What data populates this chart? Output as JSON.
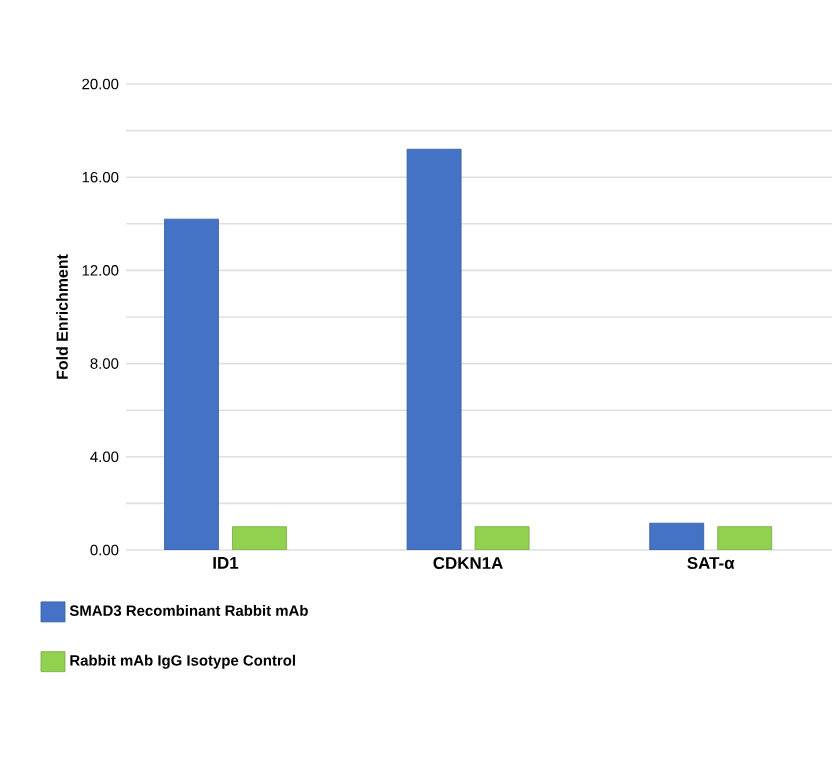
{
  "chart_data": {
    "type": "bar",
    "ylabel": "Fold Enrichment",
    "categories": [
      "ID1",
      "CDKN1A",
      "SAT-α"
    ],
    "series": [
      {
        "name": "SMAD3 Recombinant Rabbit mAb",
        "color": "#4472c4",
        "values": [
          14.2,
          17.2,
          1.15
        ]
      },
      {
        "name": "Rabbit mAb IgG Isotype Control",
        "color": "#92d050",
        "values": [
          1.0,
          1.0,
          1.0
        ]
      }
    ],
    "ylim": [
      0,
      20
    ],
    "yticks": [
      {
        "value": 0,
        "label": "0.00"
      },
      {
        "value": 2,
        "label": null
      },
      {
        "value": 4,
        "label": "4.00"
      },
      {
        "value": 6,
        "label": null
      },
      {
        "value": 8,
        "label": "8.00"
      },
      {
        "value": 10,
        "label": null
      },
      {
        "value": 12,
        "label": "12.00"
      },
      {
        "value": 14,
        "label": null
      },
      {
        "value": 16,
        "label": "16.00"
      },
      {
        "value": 18,
        "label": null
      },
      {
        "value": 20,
        "label": "20.00"
      }
    ],
    "grid": "y",
    "legend": "bottom"
  }
}
